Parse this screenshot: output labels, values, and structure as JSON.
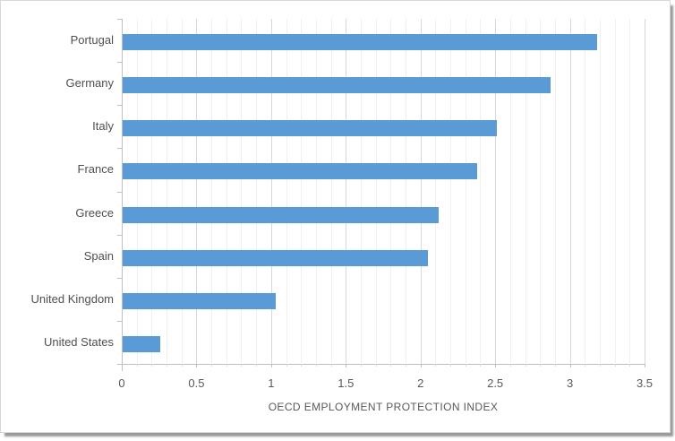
{
  "chart_data": {
    "type": "bar",
    "orientation": "horizontal",
    "title": "",
    "xlabel": "OECD EMPLOYMENT PROTECTION INDEX",
    "ylabel": "",
    "categories": [
      "Portugal",
      "Germany",
      "Italy",
      "France",
      "Greece",
      "Spain",
      "United Kingdom",
      "United States"
    ],
    "values": [
      3.18,
      2.87,
      2.51,
      2.38,
      2.12,
      2.05,
      1.03,
      0.26
    ],
    "xlim": [
      0,
      3.5
    ],
    "xticks": [
      0,
      0.5,
      1,
      1.5,
      2,
      2.5,
      3,
      3.5
    ],
    "xtick_labels": [
      "0",
      "0.5",
      "1",
      "1.5",
      "2",
      "2.5",
      "3",
      "3.5"
    ],
    "minor_tick_interval": 0.1,
    "grid": true,
    "legend": false,
    "colors": {
      "bar": "#5B9BD5",
      "major_grid": "#D9D9D9",
      "minor_grid": "#F0F0F0",
      "axis_line": "#BFBFBF",
      "tick_label": "#595959",
      "category_label": "#4F4F4F",
      "axis_title": "#595959",
      "background": "#FFFFFF"
    }
  }
}
